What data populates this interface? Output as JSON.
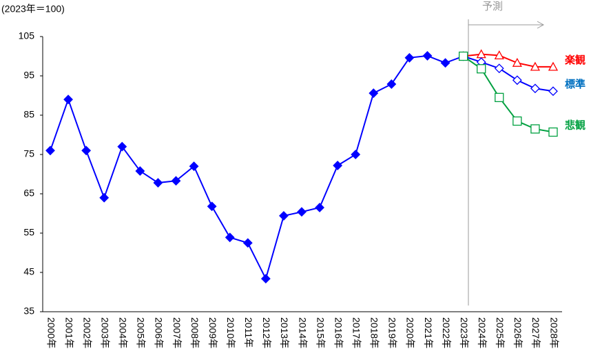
{
  "chart_data": {
    "type": "line",
    "annotations": [
      "(2023年＝100)",
      "予測"
    ],
    "categories": [
      "2000年",
      "2001年",
      "2002年",
      "2003年",
      "2004年",
      "2005年",
      "2006年",
      "2007年",
      "2008年",
      "2009年",
      "2010年",
      "2011年",
      "2012年",
      "2013年",
      "2014年",
      "2015年",
      "2016年",
      "2017年",
      "2018年",
      "2019年",
      "2020年",
      "2021年",
      "2022年",
      "2023年",
      "2024年",
      "2025年",
      "2026年",
      "2027年",
      "2028年"
    ],
    "series": [
      {
        "color": "#0000ff",
        "marker": "diamond",
        "filled": true,
        "values": [
          76,
          89,
          76,
          64,
          77,
          70.8,
          67.8,
          68.3,
          72,
          61.8,
          53.9,
          52.5,
          43.4,
          59.4,
          60.4,
          61.5,
          72.2,
          75,
          90.6,
          92.9,
          99.6,
          100.1,
          98.3,
          100,
          null,
          null,
          null,
          null,
          null
        ]
      },
      {
        "name": "楽観",
        "color": "#ff0000",
        "marker": "triangle",
        "filled": false,
        "values": [
          null,
          null,
          null,
          null,
          null,
          null,
          null,
          null,
          null,
          null,
          null,
          null,
          null,
          null,
          null,
          null,
          null,
          null,
          null,
          null,
          null,
          null,
          null,
          100,
          100.5,
          100.2,
          98.3,
          97.3,
          97.3
        ]
      },
      {
        "name": "標準",
        "color": "#0000ff",
        "label_color": "#0070c0",
        "marker": "diamond",
        "filled": false,
        "values": [
          null,
          null,
          null,
          null,
          null,
          null,
          null,
          null,
          null,
          null,
          null,
          null,
          null,
          null,
          null,
          null,
          null,
          null,
          null,
          null,
          null,
          null,
          null,
          100,
          98.5,
          96.9,
          93.9,
          91.8,
          91.1
        ]
      },
      {
        "name": "悲観",
        "color": "#00a040",
        "marker": "square",
        "filled": false,
        "values": [
          null,
          null,
          null,
          null,
          null,
          null,
          null,
          null,
          null,
          null,
          null,
          null,
          null,
          null,
          null,
          null,
          null,
          null,
          null,
          null,
          null,
          null,
          null,
          100,
          96.8,
          89.5,
          83.5,
          81.5,
          80.7
        ]
      }
    ],
    "ylim": [
      35,
      105
    ],
    "yticks": [
      35,
      45,
      55,
      65,
      75,
      85,
      95,
      105
    ],
    "grid": false
  }
}
